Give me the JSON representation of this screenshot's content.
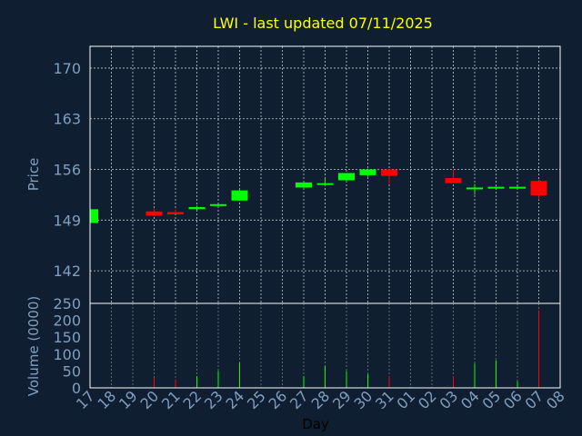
{
  "chart_data": {
    "type": "candlestick",
    "title": "LWI - last updated 07/11/2025",
    "xlabel": "Day",
    "colors": {
      "background": "#0f1e30",
      "up": "#00ff00",
      "down": "#ff0000",
      "title": "#ffff00",
      "ticks": "#7f9fbf"
    },
    "x_tick_labels": [
      "17",
      "18",
      "19",
      "20",
      "21",
      "22",
      "23",
      "24",
      "25",
      "26",
      "27",
      "28",
      "29",
      "30",
      "31",
      "01",
      "02",
      "03",
      "04",
      "05",
      "06",
      "07",
      "08"
    ],
    "price_panel": {
      "ylabel": "Price",
      "ylim": [
        137.5,
        173
      ],
      "yticks": [
        142,
        149,
        156,
        163,
        170
      ]
    },
    "volume_panel": {
      "ylabel": "Volume (0000)",
      "ylim": [
        0,
        250
      ],
      "yticks": [
        0,
        50,
        100,
        150,
        200,
        250
      ]
    },
    "candles": [
      {
        "day": "17",
        "open": 148.6,
        "high": 150.5,
        "low": 148.4,
        "close": 150.5
      },
      {
        "day": "20",
        "open": 150.2,
        "high": 150.6,
        "low": 149.6,
        "close": 149.6
      },
      {
        "day": "21",
        "open": 150.1,
        "high": 150.5,
        "low": 149.8,
        "close": 149.8
      },
      {
        "day": "22",
        "open": 150.5,
        "high": 151.0,
        "low": 150.3,
        "close": 150.8
      },
      {
        "day": "23",
        "open": 151.0,
        "high": 151.3,
        "low": 150.8,
        "close": 151.2
      },
      {
        "day": "24",
        "open": 151.7,
        "high": 153.3,
        "low": 151.7,
        "close": 153.1
      },
      {
        "day": "27",
        "open": 153.5,
        "high": 154.4,
        "low": 153.3,
        "close": 154.2
      },
      {
        "day": "28",
        "open": 154.0,
        "high": 154.7,
        "low": 153.7,
        "close": 154.1
      },
      {
        "day": "29",
        "open": 154.5,
        "high": 155.5,
        "low": 154.3,
        "close": 155.5
      },
      {
        "day": "30",
        "open": 155.2,
        "high": 156.1,
        "low": 155.0,
        "close": 156.0
      },
      {
        "day": "31",
        "open": 156.0,
        "high": 156.1,
        "low": 154.0,
        "close": 155.1
      },
      {
        "day": "03",
        "open": 154.8,
        "high": 156.0,
        "low": 154.1,
        "close": 154.1
      },
      {
        "day": "04",
        "open": 153.3,
        "high": 154.0,
        "low": 152.5,
        "close": 153.5
      },
      {
        "day": "05",
        "open": 153.4,
        "high": 153.6,
        "low": 153.2,
        "close": 153.6
      },
      {
        "day": "06",
        "open": 153.4,
        "high": 153.7,
        "low": 153.2,
        "close": 153.6
      },
      {
        "day": "07",
        "open": 154.4,
        "high": 154.6,
        "low": 151.8,
        "close": 152.4
      }
    ],
    "volume": [
      {
        "day": "17",
        "value": 10,
        "dir": "up"
      },
      {
        "day": "20",
        "value": 30,
        "dir": "down"
      },
      {
        "day": "21",
        "value": 25,
        "dir": "down"
      },
      {
        "day": "22",
        "value": 35,
        "dir": "up"
      },
      {
        "day": "23",
        "value": 50,
        "dir": "up"
      },
      {
        "day": "24",
        "value": 75,
        "dir": "up"
      },
      {
        "day": "27",
        "value": 35,
        "dir": "up"
      },
      {
        "day": "28",
        "value": 65,
        "dir": "up"
      },
      {
        "day": "29",
        "value": 50,
        "dir": "up"
      },
      {
        "day": "30",
        "value": 40,
        "dir": "up"
      },
      {
        "day": "31",
        "value": 35,
        "dir": "down"
      },
      {
        "day": "03",
        "value": 35,
        "dir": "down"
      },
      {
        "day": "04",
        "value": 72,
        "dir": "up"
      },
      {
        "day": "05",
        "value": 82,
        "dir": "up"
      },
      {
        "day": "06",
        "value": 20,
        "dir": "up"
      },
      {
        "day": "07",
        "value": 230,
        "dir": "down"
      }
    ]
  }
}
